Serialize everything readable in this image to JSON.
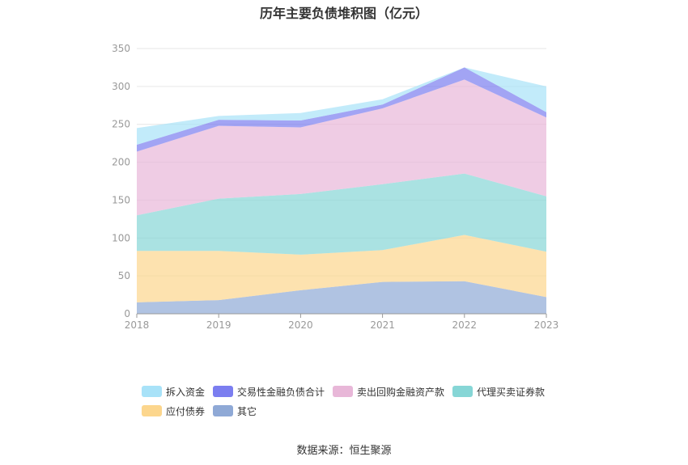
{
  "title": "历年主要负债堆积图（亿元）",
  "source": "数据来源：恒生聚源",
  "chart_data": {
    "type": "area",
    "stacked": true,
    "x": [
      "2018",
      "2019",
      "2020",
      "2021",
      "2022",
      "2023"
    ],
    "ylim": [
      0,
      350
    ],
    "yticks": [
      0,
      50,
      100,
      150,
      200,
      250,
      300,
      350
    ],
    "grid": true,
    "legend_position": "bottom",
    "series": [
      {
        "name": "其它",
        "color": "#8fa9d6",
        "values": [
          15,
          18,
          31,
          42,
          43,
          22
        ]
      },
      {
        "name": "应付债券",
        "color": "#fcd68d",
        "values": [
          68,
          65,
          47,
          42,
          61,
          60
        ]
      },
      {
        "name": "代理买卖证券款",
        "color": "#86d6d6",
        "values": [
          47,
          69,
          80,
          87,
          81,
          73
        ]
      },
      {
        "name": "卖出回购金融资产款",
        "color": "#e8b7d8",
        "values": [
          84,
          96,
          88,
          100,
          124,
          104
        ]
      },
      {
        "name": "交易性金融负债合计",
        "color": "#7b7ef0",
        "values": [
          9,
          8,
          9,
          5,
          16,
          7
        ]
      },
      {
        "name": "拆入资金",
        "color": "#a8e2f8",
        "values": [
          22,
          5,
          10,
          7,
          0,
          34
        ]
      }
    ],
    "legend_order": [
      "拆入资金",
      "交易性金融负债合计",
      "卖出回购金融资产款",
      "代理买卖证券款",
      "应付债券",
      "其它"
    ]
  }
}
